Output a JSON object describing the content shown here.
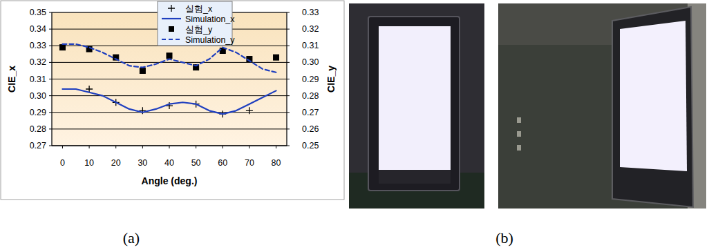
{
  "chart_data": {
    "type": "line",
    "x_label": "Angle (deg.)",
    "y_label": "CIE_x",
    "y2_label": "CIE_y",
    "xlim": [
      -4,
      84
    ],
    "xticks": [
      0,
      10,
      20,
      30,
      40,
      50,
      60,
      70,
      80
    ],
    "ylim": [
      0.27,
      0.35
    ],
    "yticks": [
      0.27,
      0.28,
      0.29,
      {
        "value": 0.3,
        "label": "0.30"
      },
      0.31,
      0.32,
      0.33,
      0.34,
      0.35
    ],
    "y2lim": [
      0.25,
      0.33
    ],
    "y2ticks": [
      0.25,
      0.26,
      0.27,
      0.28,
      0.29,
      {
        "value": 0.3,
        "label": "0.30"
      },
      0.31,
      0.32,
      0.33
    ],
    "grid": true,
    "legend": "upper right",
    "series": [
      {
        "name": "실험_x",
        "type": "scatter",
        "marker": "plus",
        "color": "#000000",
        "x": [
          0,
          10,
          20,
          30,
          40,
          50,
          60,
          70,
          80
        ],
        "values": [
          null,
          0.304,
          0.296,
          0.291,
          0.294,
          0.295,
          0.289,
          0.291,
          null
        ]
      },
      {
        "name": "Simulation_x",
        "type": "line",
        "line_style": "solid",
        "color": "#1f3fbf",
        "x": [
          0,
          5,
          10,
          15,
          20,
          25,
          30,
          35,
          40,
          45,
          50,
          55,
          60,
          65,
          70,
          75,
          80
        ],
        "values": [
          0.304,
          0.304,
          0.302,
          0.3,
          0.296,
          0.292,
          0.29,
          0.292,
          0.295,
          0.296,
          0.295,
          0.291,
          0.289,
          0.291,
          0.295,
          0.299,
          0.303
        ]
      },
      {
        "name": "실험_y",
        "type": "scatter",
        "marker": "square",
        "color": "#000000",
        "axis": "y2",
        "x": [
          0,
          10,
          20,
          30,
          40,
          50,
          60,
          70,
          80
        ],
        "values": [
          0.309,
          0.308,
          0.303,
          0.295,
          0.304,
          0.297,
          0.307,
          0.302,
          0.303
        ]
      },
      {
        "name": "Simulation_y",
        "type": "line",
        "line_style": "dashed",
        "color": "#1f3fbf",
        "axis": "y2",
        "x": [
          0,
          5,
          10,
          15,
          20,
          25,
          30,
          35,
          40,
          45,
          50,
          55,
          60,
          65,
          70,
          75,
          80
        ],
        "values": [
          0.311,
          0.311,
          0.309,
          0.306,
          0.302,
          0.298,
          0.297,
          0.299,
          0.302,
          0.3,
          0.298,
          0.302,
          0.309,
          0.306,
          0.301,
          0.296,
          0.294
        ]
      }
    ]
  },
  "panel_labels": [
    "(a)",
    "(b)"
  ]
}
